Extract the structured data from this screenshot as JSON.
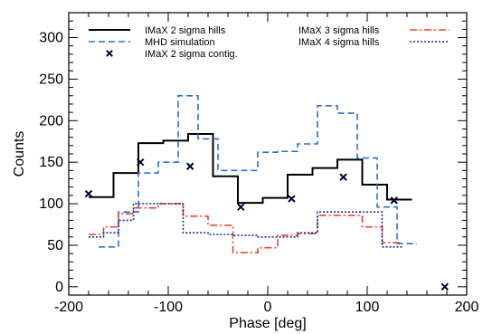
{
  "chart_data": {
    "type": "line",
    "xlabel": "Phase [deg]",
    "ylabel": "Counts",
    "xlim": [
      -200,
      200
    ],
    "ylim": [
      -10,
      330
    ],
    "xticks": [
      -200,
      -100,
      0,
      100,
      200
    ],
    "yticks": [
      0,
      50,
      100,
      150,
      200,
      250,
      300
    ],
    "legend_left": [
      "IMaX 2 sigma hills",
      "MHD simulation",
      "IMaX 2 sigma contig."
    ],
    "legend_right": [
      "IMaX 3 sigma hills",
      "IMaX 4 sigma hills"
    ],
    "series": [
      {
        "name": "IMaX 2 sigma hills",
        "kind": "step",
        "color": "#000000",
        "dash": "",
        "edges": [
          -180,
          -155,
          -130,
          -105,
          -80,
          -55,
          -30,
          -5,
          20,
          45,
          70,
          95,
          120,
          145
        ],
        "values": [
          108,
          137,
          173,
          176,
          184,
          133,
          101,
          107,
          135,
          143,
          153,
          123,
          105
        ]
      },
      {
        "name": "MHD simulation",
        "kind": "step",
        "color": "#2f6fd0",
        "dash": "7,4",
        "edges": [
          -170,
          -150,
          -130,
          -110,
          -90,
          -70,
          -50,
          -30,
          -10,
          10,
          30,
          50,
          70,
          90,
          110,
          130,
          150
        ],
        "values": [
          48,
          90,
          137,
          150,
          230,
          178,
          140,
          140,
          162,
          163,
          172,
          218,
          209,
          155,
          96,
          52
        ]
      },
      {
        "name": "IMaX 3 sigma hills",
        "kind": "step",
        "color": "#e8452a",
        "dash": "8,3,2,3",
        "edges": [
          -180,
          -165,
          -150,
          -135,
          -110,
          -85,
          -60,
          -35,
          -10,
          10,
          30,
          50,
          75,
          95,
          115,
          135
        ],
        "values": [
          63,
          72,
          88,
          95,
          100,
          85,
          74,
          41,
          47,
          62,
          64,
          86,
          86,
          72,
          53
        ]
      },
      {
        "name": "IMaX 4 sigma hills",
        "kind": "step",
        "color": "#1a2a9a",
        "dash": "2,2",
        "edges": [
          -180,
          -165,
          -150,
          -135,
          -110,
          -85,
          -60,
          -35,
          -10,
          10,
          30,
          50,
          75,
          95,
          115,
          135
        ],
        "values": [
          60,
          65,
          80,
          100,
          100,
          65,
          63,
          62,
          60,
          60,
          65,
          90,
          90,
          90,
          48
        ]
      },
      {
        "name": "IMaX 2 sigma contig.",
        "kind": "marker",
        "color": "#000033",
        "x": [
          -180,
          -128,
          -78,
          -27,
          24,
          76,
          127,
          178
        ],
        "y": [
          112,
          150,
          145,
          96,
          106,
          132,
          104,
          0
        ]
      }
    ]
  }
}
